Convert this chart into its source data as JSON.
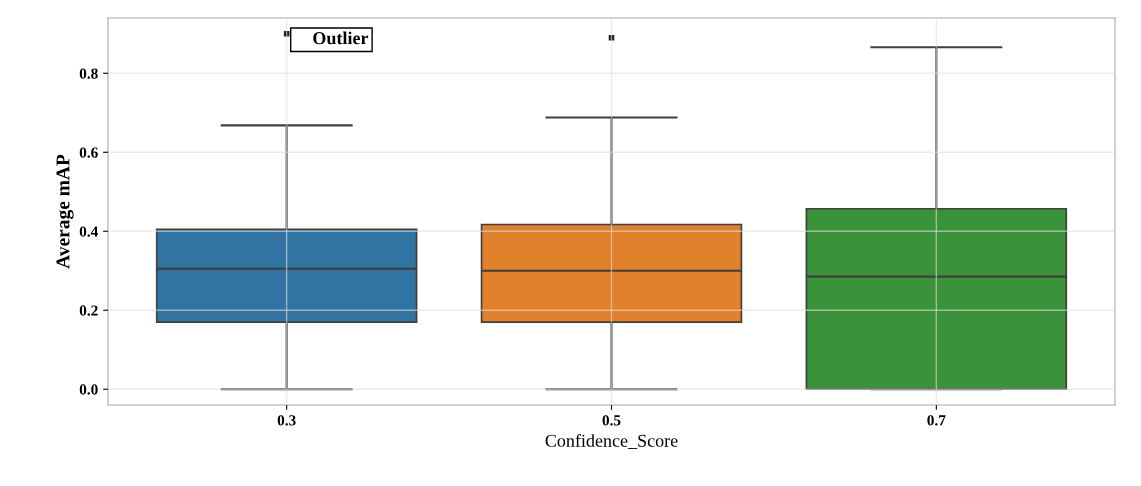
{
  "chart_data": {
    "type": "box",
    "xlabel": "Confidence_Score",
    "ylabel": "Average mAP",
    "categories": [
      "0.3",
      "0.5",
      "0.7"
    ],
    "colors": [
      "#3274a1",
      "#e1812c",
      "#3a923a"
    ],
    "boxes": [
      {
        "low": 0,
        "q1": 0.17,
        "median": 0.305,
        "q3": 0.405,
        "high": 0.668,
        "outliers": [
          0.9
        ]
      },
      {
        "low": 0,
        "q1": 0.17,
        "median": 0.3,
        "q3": 0.417,
        "high": 0.688,
        "outliers": [
          0.89
        ]
      },
      {
        "low": 0,
        "q1": 0,
        "median": 0.285,
        "q3": 0.457,
        "high": 0.866
      }
    ],
    "annotations": [
      "Outlier"
    ],
    "grid": true,
    "ylim": [
      -0.04,
      0.94
    ],
    "yticks": [
      {
        "value": 0,
        "label": "0.0"
      },
      0.2,
      0.4,
      0.6,
      0.8
    ]
  }
}
